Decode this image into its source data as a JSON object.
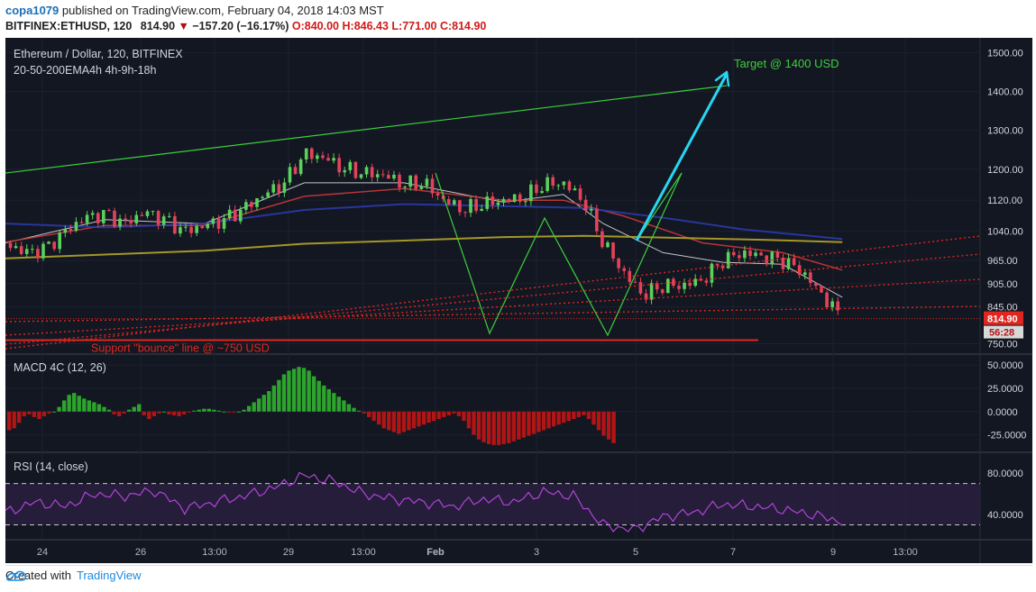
{
  "header": {
    "author": "copa1079",
    "published_text": "published on TradingView.com, February 04, 2018 14:03 MST",
    "symbol": "BITFINEX:ETHUSD, 120",
    "last": "814.90",
    "change_arrow": "▼",
    "change": "−157.20 (−16.17%)",
    "ohlc": {
      "o_label": "O:",
      "o": "840.00",
      "h_label": "H:",
      "h": "846.43",
      "l_label": "L:",
      "l": "771.00",
      "c_label": "C:",
      "c": "814.90"
    }
  },
  "main_pane": {
    "title": "Ethereum / Dollar, 120, BITFINEX",
    "indicator": "20-50-200EMA4h 4h-9h-18h",
    "price_label": "814.90",
    "timer_label": "56:28",
    "annotations": {
      "target": "Target @ 1400 USD",
      "support": "Support \"bounce\" line @ ~750 USD"
    }
  },
  "macd_pane": {
    "title": "MACD 4C (12, 26)"
  },
  "rsi_pane": {
    "title": "RSI (14, close)"
  },
  "footer": {
    "created_with": "Created with",
    "brand": "TradingView"
  },
  "colors": {
    "background": "#131722",
    "grid": "#1f2430",
    "candle_up": "#5ad15a",
    "candle_down": "#e3435a",
    "ema_blue": "#2a3aa8",
    "ema_gold": "#b5a52a",
    "ema_red": "#c9383a",
    "trend_green": "#3ccf3c",
    "arrow_cyan": "#27d7f2",
    "support_red": "#e0261f",
    "rsi_purple": "#b044d8",
    "macd_green": "#2da52d",
    "macd_red": "#b21515"
  },
  "chart_data": [
    {
      "type": "candlestick",
      "title": "Ethereum / Dollar, 120, BITFINEX",
      "x_ticks": [
        "24",
        "26",
        "13:00",
        "29",
        "13:00",
        "Feb",
        "3",
        "5",
        "7",
        "9",
        "13:00"
      ],
      "y_ticks": [
        750,
        845,
        905,
        965,
        1040,
        1120,
        1200,
        1300,
        1400,
        1500
      ],
      "y_tick_labels": [
        "750.00",
        "845.00",
        "905.00",
        "965.00",
        "1040.00",
        "1120.00",
        "1200.00",
        "1300.00",
        "1400.00",
        "1500.00"
      ],
      "ylim": [
        735,
        1520
      ],
      "last_price": 814.9,
      "price_path": [
        [
          0,
          1010
        ],
        [
          2,
          985
        ],
        [
          4,
          995
        ],
        [
          6,
          1040
        ],
        [
          8,
          1075
        ],
        [
          10,
          1085
        ],
        [
          12,
          1060
        ],
        [
          14,
          1090
        ],
        [
          16,
          1070
        ],
        [
          18,
          1040
        ],
        [
          20,
          1055
        ],
        [
          22,
          1070
        ],
        [
          24,
          1100
        ],
        [
          26,
          1135
        ],
        [
          28,
          1165
        ],
        [
          30,
          1240
        ],
        [
          32,
          1230
        ],
        [
          34,
          1200
        ],
        [
          36,
          1190
        ],
        [
          38,
          1185
        ],
        [
          40,
          1160
        ],
        [
          42,
          1165
        ],
        [
          44,
          1120
        ],
        [
          46,
          1095
        ],
        [
          48,
          1110
        ],
        [
          50,
          1120
        ],
        [
          52,
          1125
        ],
        [
          54,
          1160
        ],
        [
          56,
          1165
        ],
        [
          58,
          1120
        ],
        [
          60,
          1010
        ],
        [
          62,
          935
        ],
        [
          64,
          875
        ],
        [
          66,
          900
        ],
        [
          68,
          900
        ],
        [
          70,
          915
        ],
        [
          72,
          965
        ],
        [
          74,
          985
        ],
        [
          76,
          975
        ],
        [
          78,
          965
        ],
        [
          80,
          935
        ],
        [
          82,
          875
        ],
        [
          84,
          814.9
        ]
      ],
      "lines": [
        {
          "name": "EMA 20",
          "values": [
            [
              0,
              1010
            ],
            [
              10,
              1070
            ],
            [
              20,
              1060
            ],
            [
              30,
              1165
            ],
            [
              40,
              1165
            ],
            [
              50,
              1115
            ],
            [
              56,
              1135
            ],
            [
              60,
              1060
            ],
            [
              66,
              985
            ],
            [
              72,
              960
            ],
            [
              78,
              955
            ],
            [
              84,
              870
            ]
          ]
        },
        {
          "name": "EMA 50",
          "values": [
            [
              0,
              1012
            ],
            [
              10,
              1055
            ],
            [
              20,
              1055
            ],
            [
              30,
              1130
            ],
            [
              40,
              1150
            ],
            [
              50,
              1120
            ],
            [
              56,
              1120
            ],
            [
              62,
              1080
            ],
            [
              70,
              1010
            ],
            [
              78,
              985
            ],
            [
              84,
              940
            ]
          ]
        },
        {
          "name": "EMA 200",
          "values": [
            [
              0,
              1060
            ],
            [
              10,
              1050
            ],
            [
              20,
              1060
            ],
            [
              30,
              1095
            ],
            [
              40,
              1110
            ],
            [
              50,
              1105
            ],
            [
              58,
              1100
            ],
            [
              66,
              1075
            ],
            [
              74,
              1045
            ],
            [
              84,
              1020
            ]
          ]
        },
        {
          "name": "EMA gold",
          "values": [
            [
              0,
              970
            ],
            [
              10,
              980
            ],
            [
              20,
              990
            ],
            [
              30,
              1008
            ],
            [
              40,
              1016
            ],
            [
              50,
              1025
            ],
            [
              58,
              1028
            ],
            [
              66,
              1024
            ],
            [
              76,
              1018
            ],
            [
              84,
              1012
            ]
          ]
        }
      ],
      "drawings": {
        "target_arrow": {
          "from": [
            87,
            955
          ],
          "to": [
            99,
            1400
          ],
          "label": "Target @ 1400 USD"
        },
        "support_line": {
          "y": 750
        },
        "upper_trendline": {
          "from": [
            0,
            1190
          ],
          "to": [
            100,
            1420
          ]
        }
      }
    },
    {
      "type": "bar",
      "title": "MACD 4C (12, 26)",
      "y_ticks": [
        50,
        25,
        0,
        -25
      ],
      "y_tick_labels": [
        "50.0000",
        "25.0000",
        "0.0000",
        "-25.0000"
      ],
      "ylim": [
        -38,
        55
      ],
      "histogram": [
        -20,
        -18,
        -12,
        -5,
        -3,
        -6,
        -8,
        -5,
        -2,
        0,
        5,
        12,
        18,
        20,
        17,
        14,
        12,
        10,
        8,
        5,
        2,
        -3,
        -5,
        -2,
        2,
        5,
        8,
        -4,
        -8,
        -5,
        -2,
        0,
        -3,
        -4,
        -5,
        -3,
        -1,
        1,
        2,
        3,
        3,
        2,
        1,
        0,
        -1,
        -1,
        0,
        2,
        6,
        10,
        14,
        18,
        22,
        28,
        34,
        40,
        44,
        46,
        48,
        47,
        44,
        38,
        33,
        28,
        24,
        20,
        16,
        12,
        8,
        4,
        1,
        -2,
        -6,
        -10,
        -14,
        -18,
        -20,
        -22,
        -24,
        -22,
        -20,
        -18,
        -16,
        -14,
        -12,
        -10,
        -8,
        -6,
        -4,
        -2,
        -5,
        -10,
        -18,
        -25,
        -30,
        -33,
        -35,
        -36,
        -36,
        -35,
        -34,
        -32,
        -30,
        -28,
        -26,
        -24,
        -22,
        -20,
        -18,
        -16,
        -14,
        -12,
        -10,
        -8,
        -6,
        -4,
        -8,
        -14,
        -20,
        -26,
        -30,
        -34
      ]
    },
    {
      "type": "line",
      "title": "RSI (14, close)",
      "y_ticks": [
        80,
        40
      ],
      "y_tick_labels": [
        "80.0000",
        "40.0000"
      ],
      "ylim": [
        20,
        95
      ],
      "bands": [
        70,
        30
      ],
      "values": [
        [
          0,
          42
        ],
        [
          3,
          52
        ],
        [
          6,
          48
        ],
        [
          9,
          60
        ],
        [
          12,
          58
        ],
        [
          15,
          63
        ],
        [
          18,
          46
        ],
        [
          21,
          52
        ],
        [
          24,
          58
        ],
        [
          27,
          66
        ],
        [
          30,
          78
        ],
        [
          33,
          72
        ],
        [
          36,
          60
        ],
        [
          39,
          55
        ],
        [
          42,
          52
        ],
        [
          45,
          48
        ],
        [
          48,
          55
        ],
        [
          51,
          52
        ],
        [
          54,
          62
        ],
        [
          57,
          58
        ],
        [
          60,
          30
        ],
        [
          63,
          25
        ],
        [
          66,
          38
        ],
        [
          69,
          42
        ],
        [
          72,
          50
        ],
        [
          75,
          48
        ],
        [
          78,
          45
        ],
        [
          81,
          40
        ],
        [
          84,
          33
        ]
      ]
    }
  ]
}
